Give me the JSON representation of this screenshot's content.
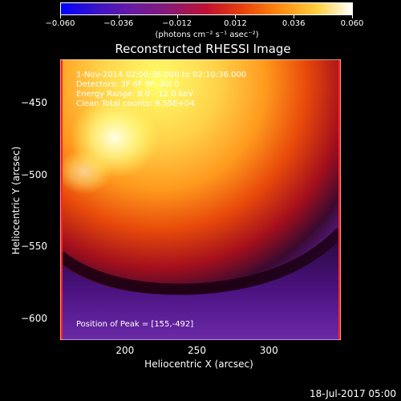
{
  "colorbar": {
    "ticks": [
      "−0.060",
      "−0.036",
      "−0.012",
      "0.012",
      "0.036",
      "0.060"
    ],
    "units": "(photons cm⁻² s⁻¹ asec⁻²)"
  },
  "title": "Reconstructed RHESSI Image",
  "annotations": [
    "1-Nov-2014 02:00:36.000 to 02:10:36.000",
    "Detectors: 3F 6F 9F, Att 0",
    "Energy Range: 6.0 - 12.0 keV",
    "Clean   Total counts: 9.55E+04"
  ],
  "peak": "Position of Peak = [155,-492]",
  "timestamp": "18-Jul-2017 05:00",
  "chart_data": {
    "type": "heatmap",
    "title": "Reconstructed RHESSI Image",
    "xlabel": "Heliocentric X (arcsec)",
    "ylabel": "Heliocentric Y (arcsec)",
    "xlim": [
      155,
      350
    ],
    "ylim": [
      -615,
      -420
    ],
    "x_ticks": [
      200,
      250,
      300
    ],
    "y_ticks": [
      -450,
      -500,
      -550,
      -600
    ],
    "x_tick_labels": [
      "200",
      "250",
      "300"
    ],
    "y_tick_labels": [
      "−450",
      "−500",
      "−550",
      "−600"
    ],
    "colorbar_range": [
      -0.06,
      0.06
    ],
    "peak": [
      155,
      -492
    ]
  }
}
